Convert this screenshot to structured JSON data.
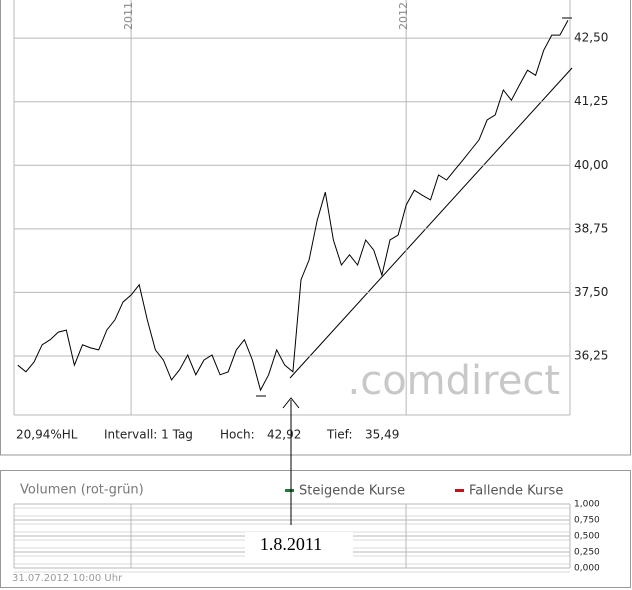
{
  "chart_data": [
    {
      "type": "line",
      "color": "#000000",
      "categories": [
        null,
        null,
        null,
        null,
        null,
        null,
        null,
        null,
        null,
        null,
        null,
        null,
        null,
        null,
        "2011",
        null,
        null,
        null,
        null,
        null,
        null,
        null,
        null,
        null,
        null,
        null,
        null,
        null,
        null,
        null,
        null,
        null,
        null,
        null,
        null,
        null,
        null,
        null,
        null,
        null,
        null,
        null,
        null,
        null,
        null,
        null,
        null,
        null,
        "2012",
        null,
        null,
        null,
        null,
        null,
        null,
        null,
        null,
        null,
        null,
        null,
        null,
        null,
        null,
        null,
        null,
        null,
        null,
        null,
        null
      ],
      "values": [
        36.07,
        35.94,
        36.13,
        36.47,
        36.57,
        36.72,
        36.76,
        36.07,
        36.47,
        36.41,
        36.37,
        36.76,
        36.96,
        37.31,
        37.45,
        37.65,
        36.96,
        36.37,
        36.17,
        35.78,
        35.98,
        36.27,
        35.88,
        36.17,
        36.27,
        35.88,
        35.94,
        36.37,
        36.57,
        36.17,
        35.58,
        35.88,
        36.37,
        36.07,
        35.94,
        37.75,
        38.14,
        38.92,
        39.47,
        38.53,
        38.04,
        38.24,
        38.04,
        38.53,
        38.33,
        37.84,
        38.53,
        38.63,
        39.22,
        39.51,
        39.41,
        39.32,
        39.81,
        39.71,
        39.91,
        40.1,
        40.3,
        40.5,
        40.89,
        40.99,
        41.48,
        41.28,
        41.58,
        41.87,
        41.77,
        42.26,
        42.56,
        42.56,
        42.85
      ],
      "ylim": [
        35.09,
        43.25
      ],
      "yticks": [
        {
          "value": 36.25,
          "label": "36,25"
        },
        {
          "value": 37.5,
          "label": "37,50"
        },
        {
          "value": 38.75,
          "label": "38,75"
        },
        {
          "value": 40,
          "label": "40,00"
        },
        {
          "value": 41.25,
          "label": "41,25"
        },
        {
          "value": 42.5,
          "label": "42,50"
        }
      ],
      "grid": true,
      "info": [
        "20,94%HL",
        "Intervall: 1 Tag",
        "Hoch:",
        "42,92",
        "Tief:",
        "35,49"
      ],
      "annotation": "1.8.2011",
      "watermark": ".comdirect"
    },
    {
      "type": "bar",
      "title": "Volumen (rot-grün)",
      "series": [
        {
          "name": "Steigende Kurse",
          "color": "#1e7b3c",
          "values": []
        },
        {
          "name": "Fallende Kurse",
          "color": "#c0141c",
          "values": []
        }
      ],
      "ylim": [
        0,
        1
      ],
      "yticks": [
        {
          "value": 0,
          "label": "0,000"
        },
        {
          "value": 0.25,
          "label": "0,250"
        },
        {
          "value": 0.5,
          "label": "0,500"
        },
        {
          "value": 0.75,
          "label": "0,750"
        },
        {
          "value": 1,
          "label": "1,000"
        }
      ],
      "grid": true,
      "footer": "31.07.2012 10:00 Uhr"
    }
  ]
}
